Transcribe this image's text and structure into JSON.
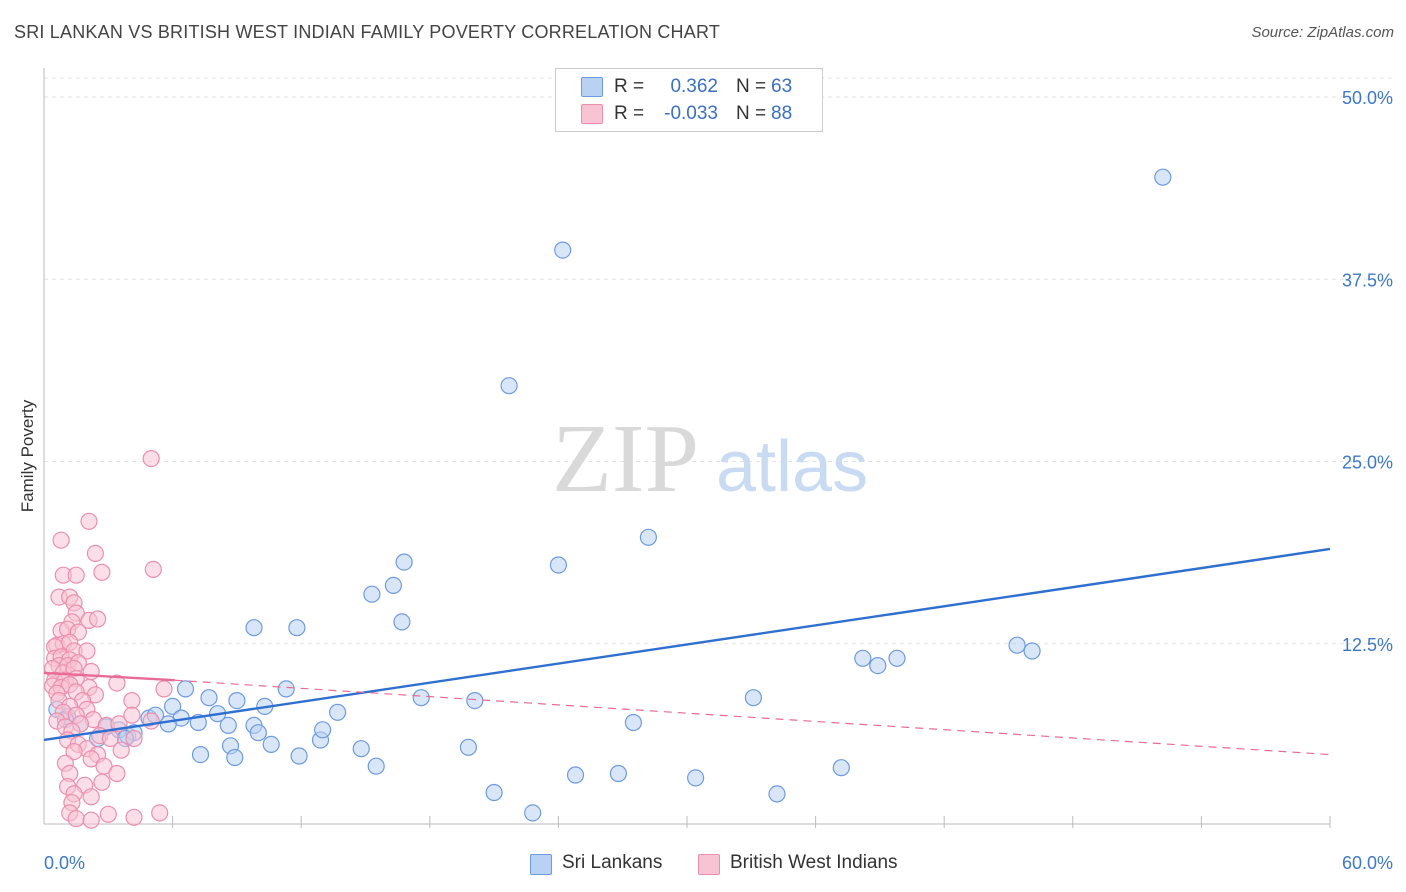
{
  "title": "SRI LANKAN VS BRITISH WEST INDIAN FAMILY POVERTY CORRELATION CHART",
  "source": "Source: ZipAtlas.com",
  "watermark": {
    "zip": "ZIP",
    "atlas": "atlas"
  },
  "legend_box": [
    {
      "r_label": "R =",
      "r_value": "0.362",
      "n_label": "N =",
      "n_value": "63"
    },
    {
      "r_label": "R =",
      "r_value": "-0.033",
      "n_label": "N =",
      "n_value": "88"
    }
  ],
  "bottom_legend": [
    "Sri Lankans",
    "British West Indians"
  ],
  "colors": {
    "blue_fill": "#b9d1f3",
    "blue_stroke": "#6d9be0",
    "blue_line": "#2f6fcf",
    "pink_fill": "#f8c3d3",
    "pink_stroke": "#ec8fae",
    "pink_line": "#e86b95",
    "tick_text": "#3d78c8",
    "grid": "#e3e3e3"
  },
  "chart_data": {
    "type": "scatter",
    "title": "SRI LANKAN VS BRITISH WEST INDIAN FAMILY POVERTY CORRELATION CHART",
    "xlabel": "",
    "ylabel": "Family Poverty",
    "xlim": [
      0,
      60
    ],
    "ylim": [
      0,
      50
    ],
    "x_tick_labels": [
      {
        "value": 0,
        "label": "0.0%"
      },
      {
        "value": 60,
        "label": "60.0%"
      }
    ],
    "y_tick_labels": [
      {
        "value": 12.5,
        "label": "12.5%"
      },
      {
        "value": 25,
        "label": "25.0%"
      },
      {
        "value": 37.5,
        "label": "37.5%"
      },
      {
        "value": 50,
        "label": "50.0%"
      }
    ],
    "series": [
      {
        "name": "Sri Lankans",
        "r": 0.362,
        "n": 63,
        "trend": {
          "x0": 0,
          "y0": 5.9,
          "x1": 60,
          "y1": 19.0,
          "dashed_extension": false
        },
        "points": [
          [
            52.2,
            44.5
          ],
          [
            24.2,
            39.5
          ],
          [
            21.7,
            30.2
          ],
          [
            28.2,
            19.8
          ],
          [
            24.0,
            17.9
          ],
          [
            16.8,
            18.1
          ],
          [
            16.3,
            16.5
          ],
          [
            15.3,
            15.9
          ],
          [
            16.7,
            14.0
          ],
          [
            9.8,
            13.6
          ],
          [
            11.8,
            13.6
          ],
          [
            11.3,
            9.4
          ],
          [
            6.6,
            9.4
          ],
          [
            7.7,
            8.8
          ],
          [
            45.4,
            12.4
          ],
          [
            46.1,
            12.0
          ],
          [
            38.2,
            11.5
          ],
          [
            38.9,
            11.0
          ],
          [
            39.8,
            11.5
          ],
          [
            33.1,
            8.8
          ],
          [
            27.5,
            7.1
          ],
          [
            20.1,
            8.6
          ],
          [
            17.6,
            8.8
          ],
          [
            13.7,
            7.8
          ],
          [
            9.0,
            8.6
          ],
          [
            10.3,
            8.2
          ],
          [
            6.0,
            8.2
          ],
          [
            6.4,
            7.4
          ],
          [
            7.2,
            7.1
          ],
          [
            8.1,
            7.7
          ],
          [
            8.6,
            6.9
          ],
          [
            9.8,
            6.9
          ],
          [
            10.0,
            6.4
          ],
          [
            4.9,
            7.4
          ],
          [
            5.2,
            7.6
          ],
          [
            5.8,
            7.0
          ],
          [
            3.5,
            6.6
          ],
          [
            3.9,
            6.2
          ],
          [
            4.2,
            6.4
          ],
          [
            2.9,
            6.8
          ],
          [
            1.7,
            7.0
          ],
          [
            1.1,
            7.5
          ],
          [
            0.6,
            8.0
          ],
          [
            1.0,
            7.3
          ],
          [
            2.5,
            6.0
          ],
          [
            3.8,
            6.0
          ],
          [
            12.9,
            5.9
          ],
          [
            13.0,
            6.6
          ],
          [
            11.9,
            4.8
          ],
          [
            10.6,
            5.6
          ],
          [
            8.7,
            5.5
          ],
          [
            8.9,
            4.7
          ],
          [
            7.3,
            4.9
          ],
          [
            15.5,
            4.1
          ],
          [
            14.8,
            5.3
          ],
          [
            19.8,
            5.4
          ],
          [
            24.8,
            3.5
          ],
          [
            26.8,
            3.6
          ],
          [
            21.0,
            2.3
          ],
          [
            30.4,
            3.3
          ],
          [
            34.2,
            2.2
          ],
          [
            37.2,
            4.0
          ],
          [
            22.8,
            0.9
          ]
        ]
      },
      {
        "name": "British West Indians",
        "r": -0.033,
        "n": 88,
        "trend": {
          "x0": 0,
          "y0": 10.5,
          "x1": 6.1,
          "y1": 10.0,
          "dash_x1": 60,
          "dash_y1": 4.9
        },
        "points": [
          [
            5.0,
            25.2
          ],
          [
            2.1,
            20.9
          ],
          [
            0.8,
            19.6
          ],
          [
            2.4,
            18.7
          ],
          [
            5.1,
            17.6
          ],
          [
            0.9,
            17.2
          ],
          [
            1.5,
            17.2
          ],
          [
            2.7,
            17.4
          ],
          [
            0.7,
            15.7
          ],
          [
            1.2,
            15.7
          ],
          [
            1.4,
            15.3
          ],
          [
            1.5,
            14.6
          ],
          [
            1.3,
            14.0
          ],
          [
            2.1,
            14.1
          ],
          [
            2.5,
            14.2
          ],
          [
            0.8,
            13.4
          ],
          [
            1.1,
            13.5
          ],
          [
            1.6,
            13.3
          ],
          [
            0.6,
            12.4
          ],
          [
            0.9,
            12.5
          ],
          [
            1.2,
            12.6
          ],
          [
            0.5,
            12.3
          ],
          [
            1.4,
            12.0
          ],
          [
            2.0,
            12.0
          ],
          [
            0.5,
            11.5
          ],
          [
            0.8,
            11.6
          ],
          [
            1.2,
            11.4
          ],
          [
            0.7,
            11.0
          ],
          [
            1.1,
            11.0
          ],
          [
            1.6,
            11.2
          ],
          [
            0.4,
            10.8
          ],
          [
            0.9,
            10.5
          ],
          [
            1.4,
            10.8
          ],
          [
            2.2,
            10.6
          ],
          [
            0.5,
            10.0
          ],
          [
            1.0,
            10.0
          ],
          [
            1.5,
            10.1
          ],
          [
            0.4,
            9.6
          ],
          [
            0.8,
            9.5
          ],
          [
            1.2,
            9.7
          ],
          [
            2.1,
            9.5
          ],
          [
            0.6,
            9.1
          ],
          [
            1.5,
            9.2
          ],
          [
            2.4,
            9.0
          ],
          [
            3.4,
            9.8
          ],
          [
            5.6,
            9.4
          ],
          [
            4.1,
            8.6
          ],
          [
            1.8,
            8.6
          ],
          [
            0.7,
            8.6
          ],
          [
            1.2,
            8.2
          ],
          [
            2.0,
            8.0
          ],
          [
            0.9,
            7.8
          ],
          [
            1.5,
            7.6
          ],
          [
            2.3,
            7.3
          ],
          [
            1.7,
            7.0
          ],
          [
            2.9,
            6.9
          ],
          [
            3.5,
            7.0
          ],
          [
            4.1,
            7.6
          ],
          [
            0.6,
            7.2
          ],
          [
            1.0,
            6.8
          ],
          [
            1.3,
            6.5
          ],
          [
            2.6,
            6.2
          ],
          [
            3.1,
            6.0
          ],
          [
            4.2,
            6.0
          ],
          [
            5.0,
            7.2
          ],
          [
            1.1,
            5.9
          ],
          [
            1.6,
            5.6
          ],
          [
            2.0,
            5.3
          ],
          [
            1.4,
            5.1
          ],
          [
            2.5,
            4.9
          ],
          [
            3.6,
            5.2
          ],
          [
            2.2,
            4.6
          ],
          [
            1.0,
            4.3
          ],
          [
            2.8,
            4.1
          ],
          [
            1.2,
            3.6
          ],
          [
            3.4,
            3.6
          ],
          [
            2.7,
            3.0
          ],
          [
            1.1,
            2.7
          ],
          [
            1.9,
            2.8
          ],
          [
            1.4,
            2.2
          ],
          [
            2.2,
            2.0
          ],
          [
            1.3,
            1.6
          ],
          [
            1.2,
            0.9
          ],
          [
            3.0,
            0.8
          ],
          [
            4.2,
            0.6
          ],
          [
            5.4,
            0.9
          ],
          [
            1.5,
            0.5
          ],
          [
            2.2,
            0.4
          ]
        ]
      }
    ],
    "grid": true,
    "legend_position": "top-center"
  }
}
